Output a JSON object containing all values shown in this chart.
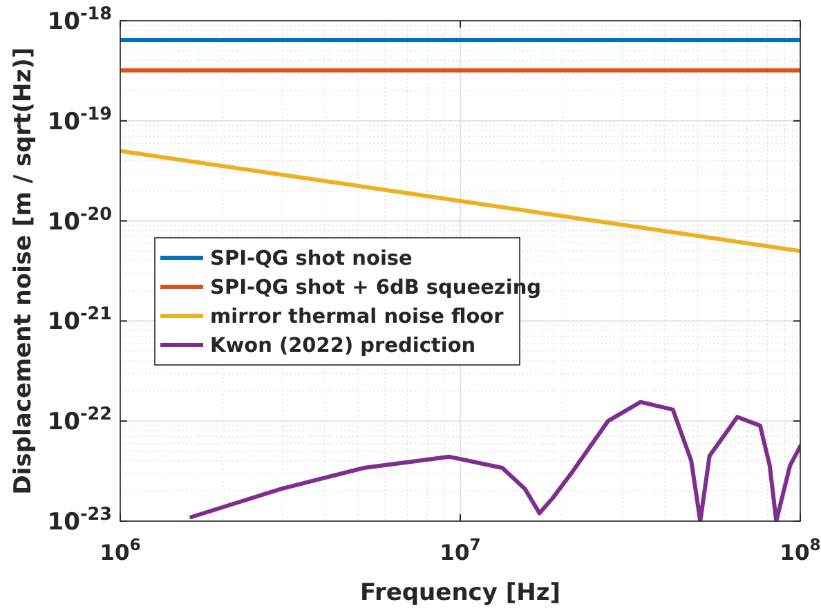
{
  "chart_data": {
    "type": "line",
    "xlabel": "Frequency [Hz]",
    "ylabel": "Displacement noise [m / sqrt(Hz)]",
    "log": "xy",
    "grid": true,
    "legend": "left",
    "line_style": "solid",
    "marker": "none",
    "xlim": [
      1000000.0,
      100000000.0
    ],
    "xticks": [
      {
        "value": 1000000.0,
        "label": "10$^{6}$"
      },
      {
        "value": 10000000.0,
        "label": "10$^{7}$"
      },
      {
        "value": 100000000.0,
        "label": "10$^{8}$"
      }
    ],
    "ylim": [
      1e-23,
      1e-18
    ],
    "yticks": [
      {
        "value": 1e-23,
        "label": "10$^{-23}$"
      },
      {
        "value": 1e-22,
        "label": "10$^{-22}$"
      },
      {
        "value": 1e-21,
        "label": "10$^{-21}$"
      },
      {
        "value": 1e-20,
        "label": "10$^{-20}$"
      },
      {
        "value": 1e-19,
        "label": "10$^{-19}$"
      },
      {
        "value": 1e-18,
        "label": "10$^{-18}$"
      }
    ],
    "series": [
      {
        "name": "SPI-QG shot noise",
        "color": "#0072bd",
        "x": [
          1000000.0,
          100000000.0
        ],
        "values": [
          6.4e-19,
          6.4e-19
        ]
      },
      {
        "name": "SPI-QG shot + 6dB squeezing",
        "color": "#d95319",
        "x": [
          1000000.0,
          100000000.0
        ],
        "values": [
          3.2e-19,
          3.2e-19
        ]
      },
      {
        "name": "mirror thermal noise floor",
        "color": "#edb120",
        "x": [
          1000000.0,
          100000000.0
        ],
        "values": [
          5e-20,
          5e-21
        ]
      },
      {
        "name": "Kwon (2022) prediction",
        "color": "#7e2f8e",
        "x": [
          1620000.0,
          2970000.0,
          5200000.0,
          9300000.0,
          13300000.0,
          15500000.0,
          17100000.0,
          18700000.0,
          21200000.0,
          27200000.0,
          33900000.0,
          42200000.0,
          47800000.0,
          50800000.0,
          54100000.0,
          65300000.0,
          76200000.0,
          81300000.0,
          85000000.0,
          93300000.0,
          100000000.0
        ],
        "values": [
          1.1e-23,
          2.1e-23,
          3.4e-23,
          4.4e-23,
          3.4e-23,
          2.1e-23,
          1.2e-23,
          1.7e-23,
          3e-23,
          1e-22,
          1.55e-22,
          1.3e-22,
          4e-23,
          1e-23,
          4.5e-23,
          1.1e-22,
          9e-23,
          3.6e-23,
          1e-23,
          3.6e-23,
          5.6e-23
        ]
      }
    ]
  }
}
